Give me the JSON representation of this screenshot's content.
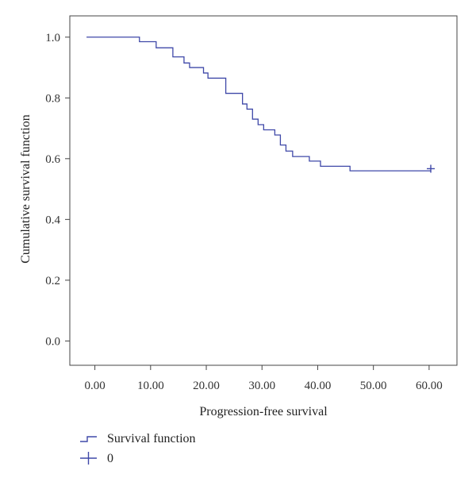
{
  "chart_data": {
    "type": "line",
    "xlabel": "Progression-free survival",
    "ylabel": "Cumulative survival function",
    "xlim": [
      -4.5,
      65
    ],
    "ylim": [
      -0.08,
      1.07
    ],
    "x_ticks": [
      "0.00",
      "10.00",
      "20.00",
      "30.00",
      "40.00",
      "50.00",
      "60.00"
    ],
    "y_ticks": [
      "0.0",
      "0.2",
      "0.4",
      "0.6",
      "0.8",
      "1.0"
    ],
    "grid": false,
    "legend_position": "bottom-left",
    "series": [
      {
        "name": "Survival function",
        "color": "#3f48a8",
        "step": true,
        "points": [
          [
            -1.5,
            1.0
          ],
          [
            8.0,
            0.985
          ],
          [
            11.0,
            0.965
          ],
          [
            14.0,
            0.935
          ],
          [
            16.0,
            0.915
          ],
          [
            17.0,
            0.9
          ],
          [
            19.5,
            0.882
          ],
          [
            20.3,
            0.865
          ],
          [
            23.5,
            0.815
          ],
          [
            26.5,
            0.78
          ],
          [
            27.3,
            0.763
          ],
          [
            28.3,
            0.73
          ],
          [
            29.3,
            0.712
          ],
          [
            30.3,
            0.695
          ],
          [
            32.3,
            0.678
          ],
          [
            33.3,
            0.645
          ],
          [
            34.3,
            0.625
          ],
          [
            35.5,
            0.607
          ],
          [
            38.5,
            0.592
          ],
          [
            40.5,
            0.575
          ],
          [
            45.8,
            0.56
          ],
          [
            60.3,
            0.56
          ]
        ]
      },
      {
        "name": "0",
        "color": "#3f48a8",
        "marker": "+",
        "points": [
          [
            60.3,
            0.567
          ]
        ]
      }
    ]
  },
  "legend": {
    "items": [
      "Survival function",
      "0"
    ]
  }
}
